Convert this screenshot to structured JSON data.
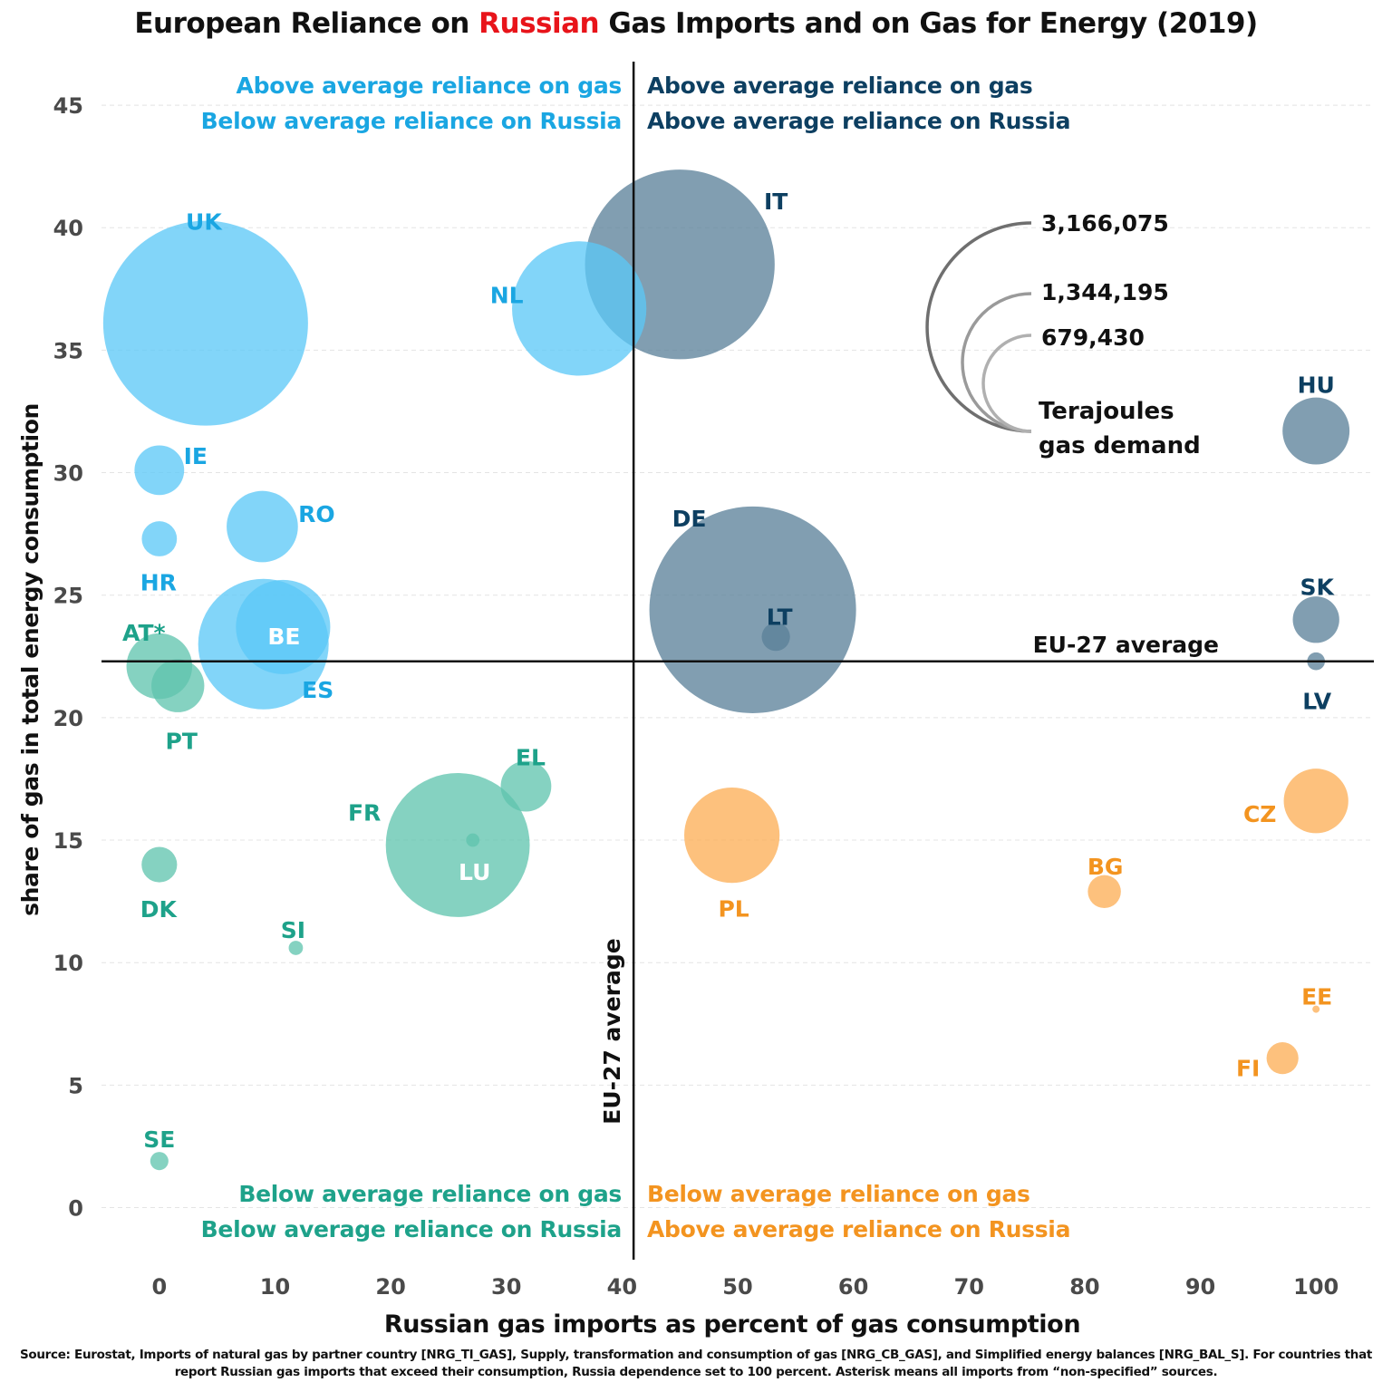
{
  "header": {
    "title_pre": "European Reliance on ",
    "title_highlight": "Russian",
    "title_post": " Gas Imports and on Gas for Energy (2019)"
  },
  "source_note": "Source: Eurostat, Imports of natural gas by partner country [NRG_TI_GAS], Supply, transformation and consumption of gas [NRG_CB_GAS], and Simplified energy balances [NRG_BAL_S]. For countries that report Russian gas imports that exceed their consumption, Russia dependence set to 100 percent. Asterisk means all imports from “non-specified” sources.",
  "quadrants": {
    "top_left": [
      "Above average reliance on gas",
      "Below average reliance on Russia"
    ],
    "top_right": [
      "Above average reliance on gas",
      "Above average reliance on Russia"
    ],
    "bottom_left": [
      "Below average reliance on gas",
      "Below average reliance on Russia"
    ],
    "bottom_right": [
      "Below average reliance on gas",
      "Above average reliance on Russia"
    ]
  },
  "size_legend": {
    "values": [
      "3,166,075",
      "1,344,195",
      "679,430"
    ],
    "title_lines": [
      "Terajoules",
      "gas demand"
    ]
  },
  "colors": {
    "top_left": "#5bc8f7",
    "top_right": "#5a7f99",
    "bottom_left": "#5ec4ae",
    "bottom_right": "#fdae54",
    "label_top_left": "#1aa6e2",
    "label_top_right": "#0d3f61",
    "label_bottom_left": "#1ea28a",
    "label_bottom_right": "#f39420"
  },
  "chart_data": {
    "type": "scatter",
    "subtype": "bubble",
    "xlabel": "Russian gas imports as percent of gas consumption",
    "ylabel": "share of gas in total energy consumption",
    "xlim": [
      -5,
      105
    ],
    "ylim": [
      -2.2,
      47
    ],
    "xticks": [
      0,
      10,
      20,
      30,
      40,
      50,
      60,
      70,
      80,
      90,
      100
    ],
    "yticks": [
      0,
      5,
      10,
      15,
      20,
      25,
      30,
      35,
      40,
      45
    ],
    "grid": "horizontal dashed",
    "size_unit": "Terajoules gas demand",
    "reference_lines": [
      {
        "axis": "x",
        "value": 41,
        "label": "EU-27 average"
      },
      {
        "axis": "y",
        "value": 22.3,
        "label": "EU-27 average"
      }
    ],
    "points": [
      {
        "label": "UK",
        "x": 4,
        "y": 36.1,
        "size": 3300000,
        "group": "top_left"
      },
      {
        "label": "NL",
        "x": 36.3,
        "y": 36.7,
        "size": 1420000,
        "group": "top_left"
      },
      {
        "label": "IT",
        "x": 45,
        "y": 38.5,
        "size": 2830000,
        "group": "top_right"
      },
      {
        "label": "IE",
        "x": 0,
        "y": 30.1,
        "size": 194000,
        "group": "top_left"
      },
      {
        "label": "RO",
        "x": 8.9,
        "y": 27.8,
        "size": 400000,
        "group": "top_left"
      },
      {
        "label": "HR",
        "x": 0,
        "y": 27.3,
        "size": 97000,
        "group": "top_left"
      },
      {
        "label": "BE",
        "x": 10.7,
        "y": 23.7,
        "size": 700000,
        "group": "top_left"
      },
      {
        "label": "ES",
        "x": 9,
        "y": 23,
        "size": 1340000,
        "group": "top_left"
      },
      {
        "label": "AT*",
        "x": 0,
        "y": 22.1,
        "size": 340000,
        "group": "bottom_left"
      },
      {
        "label": "PT",
        "x": 1.6,
        "y": 21.3,
        "size": 220000,
        "group": "bottom_left"
      },
      {
        "label": "DE",
        "x": 51.3,
        "y": 24.4,
        "size": 3360000,
        "group": "top_right"
      },
      {
        "label": "LT",
        "x": 53.3,
        "y": 23.3,
        "size": 63000,
        "group": "top_right"
      },
      {
        "label": "HU",
        "x": 100,
        "y": 31.7,
        "size": 353000,
        "group": "top_right"
      },
      {
        "label": "SK",
        "x": 100,
        "y": 24,
        "size": 170000,
        "group": "top_right"
      },
      {
        "label": "LV",
        "x": 100,
        "y": 22.3,
        "size": 25000,
        "group": "top_right"
      },
      {
        "label": "EL",
        "x": 31.7,
        "y": 17.2,
        "size": 201000,
        "group": "bottom_left"
      },
      {
        "label": "FR",
        "x": 25.8,
        "y": 14.8,
        "size": 1630000,
        "group": "bottom_left"
      },
      {
        "label": "LU",
        "x": 27.1,
        "y": 15,
        "size": 14000,
        "group": "bottom_left"
      },
      {
        "label": "DK",
        "x": 0,
        "y": 14,
        "size": 99000,
        "group": "bottom_left"
      },
      {
        "label": "SI",
        "x": 11.8,
        "y": 10.6,
        "size": 16000,
        "group": "bottom_left"
      },
      {
        "label": "SE",
        "x": 0,
        "y": 1.9,
        "size": 26000,
        "group": "bottom_left"
      },
      {
        "label": "PL",
        "x": 49.5,
        "y": 15.2,
        "size": 715000,
        "group": "bottom_right"
      },
      {
        "label": "CZ",
        "x": 100,
        "y": 16.6,
        "size": 328000,
        "group": "bottom_right"
      },
      {
        "label": "BG",
        "x": 81.7,
        "y": 12.9,
        "size": 86000,
        "group": "bottom_right"
      },
      {
        "label": "EE",
        "x": 100,
        "y": 8.1,
        "size": 3500,
        "group": "bottom_right"
      },
      {
        "label": "FI",
        "x": 97.1,
        "y": 6.1,
        "size": 80000,
        "group": "bottom_right"
      }
    ]
  }
}
